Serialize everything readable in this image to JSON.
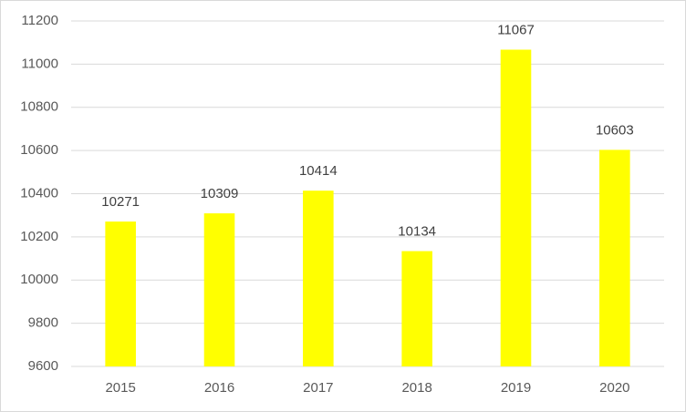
{
  "chart_data": {
    "type": "bar",
    "categories": [
      "2015",
      "2016",
      "2017",
      "2018",
      "2019",
      "2020"
    ],
    "values": [
      10271,
      10309,
      10414,
      10134,
      11067,
      10603
    ],
    "color": "#ffff00",
    "ylim": [
      9600,
      11200
    ],
    "yticks": [
      9600,
      9800,
      10000,
      10200,
      10400,
      10600,
      10800,
      11000,
      11200
    ],
    "grid": true
  }
}
